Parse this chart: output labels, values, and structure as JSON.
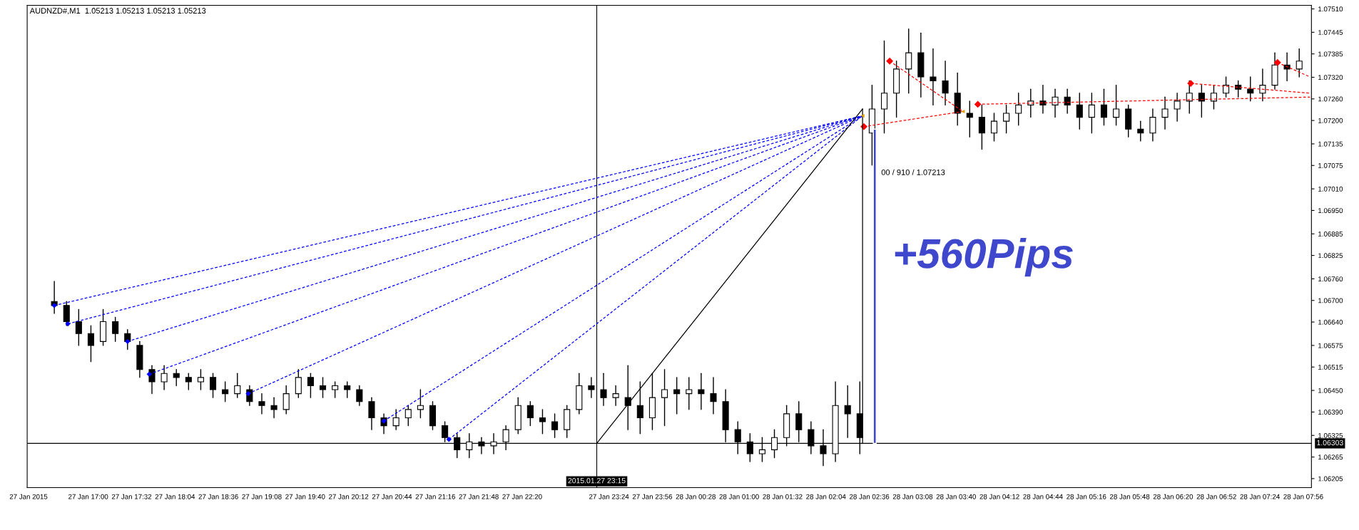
{
  "chart_data": {
    "type": "candlestick",
    "title": "AUDNZD#,M1  1.05213 1.05213 1.05213 1.05213",
    "xlim": [
      "2015-01-27T16:15",
      "2015-01-28T08:02"
    ],
    "ylim": [
      1.0618,
      1.0752
    ],
    "xticks": [
      {
        "value": "2015-01-27T16:16",
        "label": "27 Jan 2015"
      },
      {
        "value": "2015-01-27T17:00",
        "label": "27 Jan 17:00"
      },
      {
        "value": "2015-01-27T17:32",
        "label": "27 Jan 17:32"
      },
      {
        "value": "2015-01-27T18:04",
        "label": "27 Jan 18:04"
      },
      {
        "value": "2015-01-27T18:36",
        "label": "27 Jan 18:36"
      },
      {
        "value": "2015-01-27T19:08",
        "label": "27 Jan 19:08"
      },
      {
        "value": "2015-01-27T19:40",
        "label": "27 Jan 19:40"
      },
      {
        "value": "2015-01-27T20:12",
        "label": "27 Jan 20:12"
      },
      {
        "value": "2015-01-27T20:44",
        "label": "27 Jan 20:44"
      },
      {
        "value": "2015-01-27T21:16",
        "label": "27 Jan 21:16"
      },
      {
        "value": "2015-01-27T21:48",
        "label": "27 Jan 21:48"
      },
      {
        "value": "2015-01-27T22:20",
        "label": "27 Jan 22:20"
      },
      {
        "value": "2015-01-27T23:24",
        "label": "27 Jan 23:24"
      },
      {
        "value": "2015-01-27T23:56",
        "label": "27 Jan 23:56"
      },
      {
        "value": "2015-01-28T00:28",
        "label": "28 Jan 00:28"
      },
      {
        "value": "2015-01-28T01:00",
        "label": "28 Jan 01:00"
      },
      {
        "value": "2015-01-28T01:32",
        "label": "28 Jan 01:32"
      },
      {
        "value": "2015-01-28T02:04",
        "label": "28 Jan 02:04"
      },
      {
        "value": "2015-01-28T02:36",
        "label": "28 Jan 02:36"
      },
      {
        "value": "2015-01-28T03:08",
        "label": "28 Jan 03:08"
      },
      {
        "value": "2015-01-28T03:40",
        "label": "28 Jan 03:40"
      },
      {
        "value": "2015-01-28T04:12",
        "label": "28 Jan 04:12"
      },
      {
        "value": "2015-01-28T04:44",
        "label": "28 Jan 04:44"
      },
      {
        "value": "2015-01-28T05:16",
        "label": "28 Jan 05:16"
      },
      {
        "value": "2015-01-28T05:48",
        "label": "28 Jan 05:48"
      },
      {
        "value": "2015-01-28T06:20",
        "label": "28 Jan 06:20"
      },
      {
        "value": "2015-01-28T06:52",
        "label": "28 Jan 06:52"
      },
      {
        "value": "2015-01-28T07:24",
        "label": "28 Jan 07:24"
      },
      {
        "value": "2015-01-28T07:56",
        "label": "28 Jan 07:56"
      }
    ],
    "yticks": [
      {
        "value": 1.0751,
        "label": "1.07510"
      },
      1.07445,
      1.07385,
      {
        "value": 1.0732,
        "label": "1.07320"
      },
      {
        "value": 1.0726,
        "label": "1.07260"
      },
      {
        "value": 1.072,
        "label": "1.07200"
      },
      1.07135,
      1.07075,
      {
        "value": 1.0701,
        "label": "1.07010"
      },
      {
        "value": 1.0695,
        "label": "1.06950"
      },
      1.06885,
      1.06825,
      {
        "value": 1.0676,
        "label": "1.06760"
      },
      {
        "value": 1.067,
        "label": "1.06700"
      },
      {
        "value": 1.0664,
        "label": "1.06640"
      },
      1.06575,
      1.06515,
      {
        "value": 1.0645,
        "label": "1.06450"
      },
      {
        "value": 1.0639,
        "label": "1.06390"
      },
      1.06325,
      1.06265,
      1.06205
    ],
    "series": [
      {
        "color": "#000000",
        "x": [
          "2015-01-27T16:35",
          "2015-01-27T16:44",
          "2015-01-27T16:53",
          "2015-01-27T17:02",
          "2015-01-27T17:11",
          "2015-01-27T17:20",
          "2015-01-27T17:29",
          "2015-01-27T17:38",
          "2015-01-27T17:47",
          "2015-01-27T17:56",
          "2015-01-27T18:05",
          "2015-01-27T18:14",
          "2015-01-27T18:23",
          "2015-01-27T18:32",
          "2015-01-27T18:41",
          "2015-01-27T18:50",
          "2015-01-27T18:59",
          "2015-01-27T19:08",
          "2015-01-27T19:17",
          "2015-01-27T19:26",
          "2015-01-27T19:35",
          "2015-01-27T19:44",
          "2015-01-27T19:53",
          "2015-01-27T20:02",
          "2015-01-27T20:11",
          "2015-01-27T20:20",
          "2015-01-27T20:29",
          "2015-01-27T20:38",
          "2015-01-27T20:47",
          "2015-01-27T20:56",
          "2015-01-27T21:05",
          "2015-01-27T21:14",
          "2015-01-27T21:23",
          "2015-01-27T21:32",
          "2015-01-27T21:41",
          "2015-01-27T21:50",
          "2015-01-27T21:59",
          "2015-01-27T22:08",
          "2015-01-27T22:17",
          "2015-01-27T22:26",
          "2015-01-27T22:35",
          "2015-01-27T22:44",
          "2015-01-27T22:53",
          "2015-01-27T23:02",
          "2015-01-27T23:11",
          "2015-01-27T23:20",
          "2015-01-27T23:29",
          "2015-01-27T23:38",
          "2015-01-27T23:47",
          "2015-01-27T23:56",
          "2015-01-28T00:05",
          "2015-01-28T00:14",
          "2015-01-28T00:23",
          "2015-01-28T00:32",
          "2015-01-28T00:41",
          "2015-01-28T00:50",
          "2015-01-28T00:59",
          "2015-01-28T01:08",
          "2015-01-28T01:17",
          "2015-01-28T01:26",
          "2015-01-28T01:35",
          "2015-01-28T01:44",
          "2015-01-28T01:53",
          "2015-01-28T02:02",
          "2015-01-28T02:11",
          "2015-01-28T02:20",
          "2015-01-28T02:29",
          "2015-01-28T02:38",
          "2015-01-28T02:47",
          "2015-01-28T02:56",
          "2015-01-28T03:05",
          "2015-01-28T03:14",
          "2015-01-28T03:23",
          "2015-01-28T03:32",
          "2015-01-28T03:41",
          "2015-01-28T03:50",
          "2015-01-28T03:59",
          "2015-01-28T04:08",
          "2015-01-28T04:17",
          "2015-01-28T04:26",
          "2015-01-28T04:35",
          "2015-01-28T04:44",
          "2015-01-28T04:53",
          "2015-01-28T05:02",
          "2015-01-28T05:11",
          "2015-01-28T05:20",
          "2015-01-28T05:29",
          "2015-01-28T05:38",
          "2015-01-28T05:47",
          "2015-01-28T05:56",
          "2015-01-28T06:05",
          "2015-01-28T06:14",
          "2015-01-28T06:23",
          "2015-01-28T06:32",
          "2015-01-28T06:41",
          "2015-01-28T06:50",
          "2015-01-28T06:59",
          "2015-01-28T07:08",
          "2015-01-28T07:17",
          "2015-01-28T07:26",
          "2015-01-28T07:35",
          "2015-01-28T07:44",
          "2015-01-28T07:53"
        ],
        "ohlc": [
          [
            1.06697,
            1.06753,
            1.06664,
            1.06686
          ],
          [
            1.06686,
            1.06697,
            1.0663,
            1.06641
          ],
          [
            1.06641,
            1.06675,
            1.06575,
            1.06608
          ],
          [
            1.06608,
            1.0663,
            1.0653,
            1.06575
          ],
          [
            1.06586,
            1.06675,
            1.06575,
            1.06641
          ],
          [
            1.06641,
            1.06653,
            1.06586,
            1.06608
          ],
          [
            1.06608,
            1.06619,
            1.06564,
            1.06586
          ],
          [
            1.06575,
            1.06586,
            1.06486,
            1.06508
          ],
          [
            1.06508,
            1.06519,
            1.06441,
            1.06474
          ],
          [
            1.06474,
            1.06519,
            1.06452,
            1.06497
          ],
          [
            1.06497,
            1.06508,
            1.06463,
            1.06486
          ],
          [
            1.06486,
            1.06497,
            1.06452,
            1.06474
          ],
          [
            1.06474,
            1.06508,
            1.06452,
            1.06486
          ],
          [
            1.06486,
            1.06497,
            1.0643,
            1.06452
          ],
          [
            1.06452,
            1.06474,
            1.06419,
            1.06441
          ],
          [
            1.06441,
            1.06497,
            1.0643,
            1.06463
          ],
          [
            1.06452,
            1.06463,
            1.06408,
            1.06419
          ],
          [
            1.06419,
            1.06441,
            1.06385,
            1.06408
          ],
          [
            1.06408,
            1.0643,
            1.06374,
            1.06397
          ],
          [
            1.06397,
            1.06463,
            1.06385,
            1.06441
          ],
          [
            1.06441,
            1.06508,
            1.0643,
            1.06486
          ],
          [
            1.06486,
            1.06497,
            1.0643,
            1.06463
          ],
          [
            1.06463,
            1.06486,
            1.0643,
            1.06452
          ],
          [
            1.06452,
            1.06474,
            1.0643,
            1.06463
          ],
          [
            1.06463,
            1.06474,
            1.0643,
            1.06452
          ],
          [
            1.06452,
            1.06463,
            1.06408,
            1.06419
          ],
          [
            1.06419,
            1.0643,
            1.06341,
            1.06374
          ],
          [
            1.06374,
            1.06385,
            1.0633,
            1.06352
          ],
          [
            1.06352,
            1.06397,
            1.06341,
            1.06374
          ],
          [
            1.06374,
            1.06408,
            1.06352,
            1.06397
          ],
          [
            1.06397,
            1.06452,
            1.06374,
            1.06408
          ],
          [
            1.06408,
            1.06419,
            1.06341,
            1.06352
          ],
          [
            1.06352,
            1.06363,
            1.06307,
            1.06319
          ],
          [
            1.06319,
            1.0633,
            1.06263,
            1.06285
          ],
          [
            1.06285,
            1.0633,
            1.06263,
            1.06307
          ],
          [
            1.06307,
            1.06319,
            1.06274,
            1.06296
          ],
          [
            1.06296,
            1.0633,
            1.06274,
            1.06307
          ],
          [
            1.06307,
            1.06352,
            1.06285,
            1.06341
          ],
          [
            1.06341,
            1.0643,
            1.0633,
            1.06408
          ],
          [
            1.06408,
            1.06419,
            1.06352,
            1.06374
          ],
          [
            1.06374,
            1.06397,
            1.0633,
            1.06363
          ],
          [
            1.06363,
            1.06385,
            1.06319,
            1.06341
          ],
          [
            1.06341,
            1.06408,
            1.06319,
            1.06397
          ],
          [
            1.06397,
            1.06497,
            1.06385,
            1.06463
          ],
          [
            1.06463,
            1.06486,
            1.0643,
            1.06452
          ],
          [
            1.06452,
            1.06497,
            1.06408,
            1.0643
          ],
          [
            1.0643,
            1.06463,
            1.06408,
            1.06441
          ],
          [
            1.0643,
            1.06519,
            1.06341,
            1.06408
          ],
          [
            1.06408,
            1.06474,
            1.0633,
            1.06374
          ],
          [
            1.06374,
            1.06497,
            1.06341,
            1.0643
          ],
          [
            1.0643,
            1.06508,
            1.06352,
            1.06452
          ],
          [
            1.06452,
            1.06486,
            1.06385,
            1.06441
          ],
          [
            1.06441,
            1.06486,
            1.06397,
            1.06452
          ],
          [
            1.06452,
            1.06497,
            1.06397,
            1.06441
          ],
          [
            1.06441,
            1.06486,
            1.06385,
            1.06419
          ],
          [
            1.06419,
            1.06452,
            1.06307,
            1.06341
          ],
          [
            1.06341,
            1.06363,
            1.06274,
            1.06307
          ],
          [
            1.06307,
            1.0633,
            1.06252,
            1.06274
          ],
          [
            1.06274,
            1.06319,
            1.06252,
            1.06285
          ],
          [
            1.06285,
            1.06341,
            1.06263,
            1.06319
          ],
          [
            1.06319,
            1.06408,
            1.06296,
            1.06385
          ],
          [
            1.06385,
            1.06419,
            1.06307,
            1.06341
          ],
          [
            1.06341,
            1.06363,
            1.06274,
            1.06296
          ],
          [
            1.06296,
            1.06341,
            1.06241,
            1.06274
          ],
          [
            1.06274,
            1.06474,
            1.06252,
            1.06408
          ],
          [
            1.06408,
            1.06463,
            1.06319,
            1.06385
          ],
          [
            1.06385,
            1.06474,
            1.06274,
            1.06319
          ],
          [
            1.07165,
            1.07298,
            1.07076,
            1.07232
          ],
          [
            1.07232,
            1.07421,
            1.07165,
            1.07276
          ],
          [
            1.07276,
            1.07365,
            1.07209,
            1.07343
          ],
          [
            1.07343,
            1.07454,
            1.07276,
            1.07388
          ],
          [
            1.07388,
            1.07443,
            1.07265,
            1.07321
          ],
          [
            1.07321,
            1.07399,
            1.07243,
            1.0731
          ],
          [
            1.0731,
            1.07365,
            1.07243,
            1.07276
          ],
          [
            1.07276,
            1.07332,
            1.07187,
            1.0722
          ],
          [
            1.0722,
            1.07254,
            1.07154,
            1.07209
          ],
          [
            1.07209,
            1.07243,
            1.0712,
            1.07165
          ],
          [
            1.07165,
            1.0722,
            1.07143,
            1.07198
          ],
          [
            1.07198,
            1.07243,
            1.07165,
            1.0722
          ],
          [
            1.0722,
            1.07276,
            1.07187,
            1.07243
          ],
          [
            1.07243,
            1.07287,
            1.07209,
            1.07254
          ],
          [
            1.07254,
            1.07298,
            1.0722,
            1.07243
          ],
          [
            1.07243,
            1.07287,
            1.07209,
            1.07265
          ],
          [
            1.07265,
            1.07287,
            1.0722,
            1.07243
          ],
          [
            1.07243,
            1.07276,
            1.07176,
            1.07209
          ],
          [
            1.07209,
            1.07276,
            1.07165,
            1.07243
          ],
          [
            1.07243,
            1.07287,
            1.07187,
            1.07209
          ],
          [
            1.07209,
            1.07298,
            1.07187,
            1.07232
          ],
          [
            1.07232,
            1.07243,
            1.07154,
            1.07176
          ],
          [
            1.07176,
            1.07198,
            1.07143,
            1.07165
          ],
          [
            1.07165,
            1.07232,
            1.07143,
            1.07209
          ],
          [
            1.07209,
            1.07265,
            1.07176,
            1.07232
          ],
          [
            1.07232,
            1.07276,
            1.07198,
            1.07254
          ],
          [
            1.07254,
            1.0731,
            1.0722,
            1.07276
          ],
          [
            1.07276,
            1.07298,
            1.07209,
            1.07254
          ],
          [
            1.07254,
            1.07298,
            1.07232,
            1.07276
          ],
          [
            1.07276,
            1.07321,
            1.07265,
            1.07298
          ],
          [
            1.07298,
            1.0731,
            1.07265,
            1.07287
          ],
          [
            1.07287,
            1.07321,
            1.07254,
            1.07276
          ],
          [
            1.07276,
            1.07343,
            1.07254,
            1.07298
          ],
          [
            1.07298,
            1.07388,
            1.07287,
            1.07354
          ],
          [
            1.07354,
            1.07388,
            1.0731,
            1.07343
          ],
          [
            1.07343,
            1.07399,
            1.07321,
            1.07365
          ]
        ]
      },
      {
        "type": "line",
        "color": "#0000ff",
        "line_style": "dashed",
        "x": [
          "2015-01-27T16:35",
          "2015-01-28T02:31"
        ],
        "values": [
          1.06686,
          1.07213
        ]
      },
      {
        "type": "line",
        "color": "#0000ff",
        "line_style": "dashed",
        "x": [
          "2015-01-27T16:45",
          "2015-01-28T02:31"
        ],
        "values": [
          1.06635,
          1.07213
        ]
      },
      {
        "type": "line",
        "color": "#0000ff",
        "line_style": "dashed",
        "x": [
          "2015-01-27T17:29",
          "2015-01-28T02:31"
        ],
        "values": [
          1.06586,
          1.07213
        ]
      },
      {
        "type": "line",
        "color": "#0000ff",
        "line_style": "dashed",
        "x": [
          "2015-01-27T17:45",
          "2015-01-28T02:31"
        ],
        "values": [
          1.06495,
          1.07213
        ]
      },
      {
        "type": "line",
        "color": "#0000ff",
        "line_style": "dashed",
        "x": [
          "2015-01-27T18:58",
          "2015-01-28T02:31"
        ],
        "values": [
          1.06441,
          1.07213
        ]
      },
      {
        "type": "line",
        "color": "#0000ff",
        "line_style": "dashed",
        "x": [
          "2015-01-27T20:38",
          "2015-01-28T02:31"
        ],
        "values": [
          1.06365,
          1.07213
        ]
      },
      {
        "type": "line",
        "color": "#0000ff",
        "line_style": "dashed",
        "x": [
          "2015-01-27T21:26",
          "2015-01-28T02:31"
        ],
        "values": [
          1.06314,
          1.07213
        ]
      },
      {
        "type": "scatter",
        "color": "#0000ff",
        "marker": "diamond",
        "x": [
          "2015-01-27T16:35",
          "2015-01-27T16:45",
          "2015-01-27T17:29",
          "2015-01-27T17:45",
          "2015-01-27T18:58",
          "2015-01-27T20:38",
          "2015-01-27T21:26"
        ],
        "values": [
          1.06686,
          1.06635,
          1.06586,
          1.06495,
          1.06441,
          1.06365,
          1.06314
        ]
      },
      {
        "type": "line",
        "color": "#ff0000",
        "line_style": "dashed",
        "marker": "diamond",
        "x": [
          "2015-01-28T02:32",
          "2015-01-28T03:45"
        ],
        "values": [
          1.07183,
          1.07225
        ]
      },
      {
        "type": "line",
        "color": "#ff0000",
        "line_style": "dashed",
        "marker": "diamond",
        "x": [
          "2015-01-28T02:51",
          "2015-01-28T03:45"
        ],
        "values": [
          1.07365,
          1.07225
        ]
      },
      {
        "type": "line",
        "color": "#ff0000",
        "line_style": "dashed",
        "marker": "diamond",
        "x": [
          "2015-01-28T03:56",
          "2015-01-28T08:01"
        ],
        "values": [
          1.07245,
          1.07265
        ]
      },
      {
        "type": "line",
        "color": "#ff0000",
        "line_style": "dashed",
        "marker": "diamond",
        "x": [
          "2015-01-28T06:33",
          "2015-01-28T08:01"
        ],
        "values": [
          1.07303,
          1.07276
        ]
      },
      {
        "type": "line",
        "color": "#ff0000",
        "line_style": "dashed",
        "marker": "diamond",
        "x": [
          "2015-01-28T07:37",
          "2015-01-28T08:01"
        ],
        "values": [
          1.07361,
          1.07321
        ]
      },
      {
        "type": "scatter",
        "color": "#e0a000",
        "marker": "triangle",
        "x": [
          "2015-01-28T02:31",
          "2015-01-28T03:45"
        ],
        "values": [
          1.07213,
          1.07225
        ]
      },
      {
        "type": "line",
        "color": "#000000",
        "line_style": "solid",
        "x": [
          "2015-01-27T23:15",
          "2015-01-28T02:31"
        ],
        "values": [
          1.06303,
          1.07232
        ]
      },
      {
        "type": "line",
        "color": "#000000",
        "line_style": "solid",
        "x": [
          "2015-01-28T02:31",
          "2015-01-28T02:31"
        ],
        "values": [
          1.06303,
          1.07232
        ]
      },
      {
        "type": "bar",
        "color": "#3f48cc",
        "x": [
          "2015-01-28T02:40"
        ],
        "base": [
          1.06303
        ],
        "values": [
          0.00873
        ]
      }
    ],
    "ref_lines": [
      {
        "axis": "y",
        "value": 1.06303,
        "label": "1.06303",
        "color": "#000000"
      },
      {
        "axis": "x",
        "value": "2015-01-27T23:15",
        "label": "2015.01.27 23:15",
        "color": "#000000"
      }
    ],
    "annotations": [
      "00 / 910 / 1.07213",
      {
        "text": "+560Pips",
        "x": "2015-01-28T02:40",
        "y": 1.0682
      }
    ]
  }
}
